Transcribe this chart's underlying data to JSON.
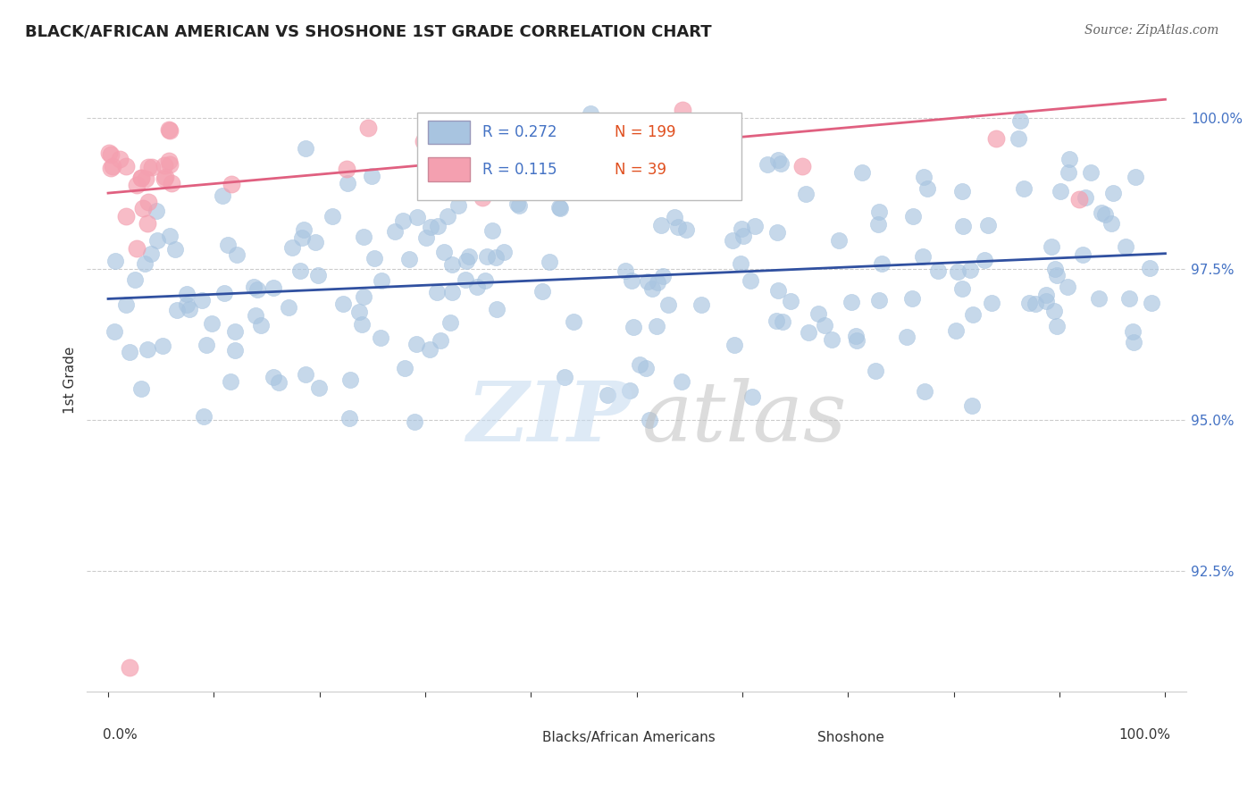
{
  "title": "BLACK/AFRICAN AMERICAN VS SHOSHONE 1ST GRADE CORRELATION CHART",
  "source_text": "Source: ZipAtlas.com",
  "ylabel": "1st Grade",
  "r_blue": 0.272,
  "n_blue": 199,
  "r_pink": 0.115,
  "n_pink": 39,
  "blue_color": "#a8c4e0",
  "pink_color": "#f4a0b0",
  "blue_line_color": "#3050a0",
  "pink_line_color": "#e06080",
  "ytick_labels": [
    "100.0%",
    "97.5%",
    "95.0%",
    "92.5%"
  ],
  "ytick_values": [
    1.0,
    0.975,
    0.95,
    0.925
  ],
  "ylim": [
    0.905,
    1.008
  ],
  "xlim": [
    -0.02,
    1.02
  ],
  "watermark_zip": "ZIP",
  "watermark_atlas": "atlas",
  "legend_label_blue": "Blacks/African Americans",
  "legend_label_pink": "Shoshone",
  "blue_trend_y0": 0.97,
  "blue_trend_y1": 0.9775,
  "pink_trend_y0": 0.9875,
  "pink_trend_y1": 1.003
}
